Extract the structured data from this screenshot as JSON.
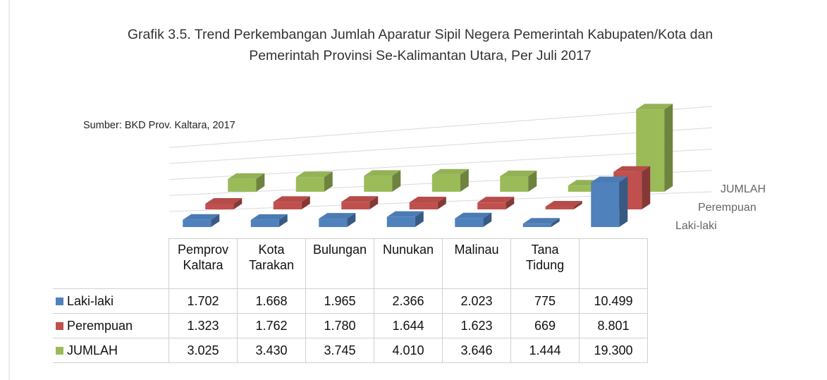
{
  "chart_data": {
    "type": "bar3d",
    "title": "Grafik  3.5. Trend  Perkembangan Jumlah Aparatur Sipil Negera Pemerintah Kabupaten/Kota dan Pemerintah Provinsi Se-Kalimantan Utara, Per Juli 2017",
    "annotation": "Sumber: BKD Prov. Kaltara, 2017",
    "categories": [
      "Pemprov Kaltara",
      "Kota Tarakan",
      "Bulungan",
      "Nunukan",
      "Malinau",
      "Tana Tidung",
      null
    ],
    "series": [
      {
        "name": "Laki-laki",
        "color": "#4f81bd",
        "values": [
          1702,
          1668,
          1965,
          2366,
          2023,
          775,
          10499
        ],
        "value_labels": [
          "1.702",
          "1.668",
          "1.965",
          "2.366",
          "2.023",
          "775",
          "10.499"
        ]
      },
      {
        "name": "Perempuan",
        "color": "#c0504d",
        "values": [
          1323,
          1762,
          1780,
          1644,
          1623,
          669,
          8801
        ],
        "value_labels": [
          "1.323",
          "1.762",
          "1.780",
          "1.644",
          "1.623",
          "669",
          "8.801"
        ]
      },
      {
        "name": "JUMLAH",
        "color": "#9bbb59",
        "values": [
          3025,
          3430,
          3745,
          4010,
          3646,
          1444,
          19300
        ],
        "value_labels": [
          "3.025",
          "3.430",
          "3.745",
          "4.010",
          "3.646",
          "1.444",
          "19.300"
        ]
      }
    ],
    "ylim": [
      0,
      20000
    ],
    "yticks": [
      0,
      5000,
      10000,
      15000,
      20000
    ],
    "grid": true
  }
}
